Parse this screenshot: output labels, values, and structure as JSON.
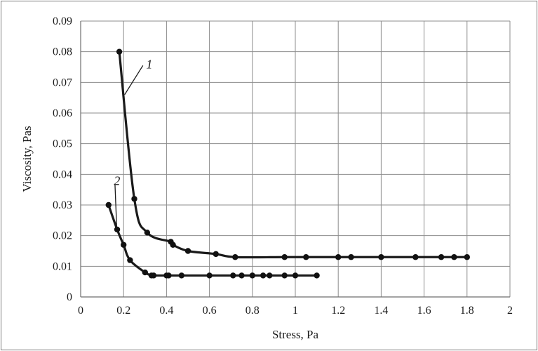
{
  "chart_data": {
    "type": "line",
    "xlabel": "Stress, Pa",
    "ylabel": "Viscosity, Pas",
    "xlim": [
      0,
      2
    ],
    "ylim": [
      0,
      0.09
    ],
    "xticks": [
      "0",
      "0.2",
      "0.4",
      "0.6",
      "0.8",
      "1",
      "1.2",
      "1.4",
      "1.6",
      "1.8",
      "2"
    ],
    "yticks": [
      "0",
      "0.01",
      "0.02",
      "0.03",
      "0.04",
      "0.05",
      "0.06",
      "0.07",
      "0.08",
      "0.09"
    ],
    "grid": true,
    "series": [
      {
        "name": "1",
        "x": [
          0.18,
          0.25,
          0.31,
          0.42,
          0.43,
          0.5,
          0.63,
          0.72,
          0.95,
          1.05,
          1.2,
          1.26,
          1.4,
          1.56,
          1.68,
          1.74,
          1.8
        ],
        "y": [
          0.08,
          0.032,
          0.021,
          0.018,
          0.017,
          0.015,
          0.014,
          0.013,
          0.013,
          0.013,
          0.013,
          0.013,
          0.013,
          0.013,
          0.013,
          0.013,
          0.013
        ]
      },
      {
        "name": "2",
        "x": [
          0.13,
          0.17,
          0.2,
          0.23,
          0.3,
          0.33,
          0.34,
          0.4,
          0.41,
          0.47,
          0.6,
          0.71,
          0.75,
          0.8,
          0.85,
          0.88,
          0.95,
          1.0,
          1.1
        ],
        "y": [
          0.03,
          0.022,
          0.017,
          0.012,
          0.008,
          0.007,
          0.007,
          0.007,
          0.007,
          0.007,
          0.007,
          0.007,
          0.007,
          0.007,
          0.007,
          0.007,
          0.007,
          0.007,
          0.007
        ]
      }
    ]
  }
}
